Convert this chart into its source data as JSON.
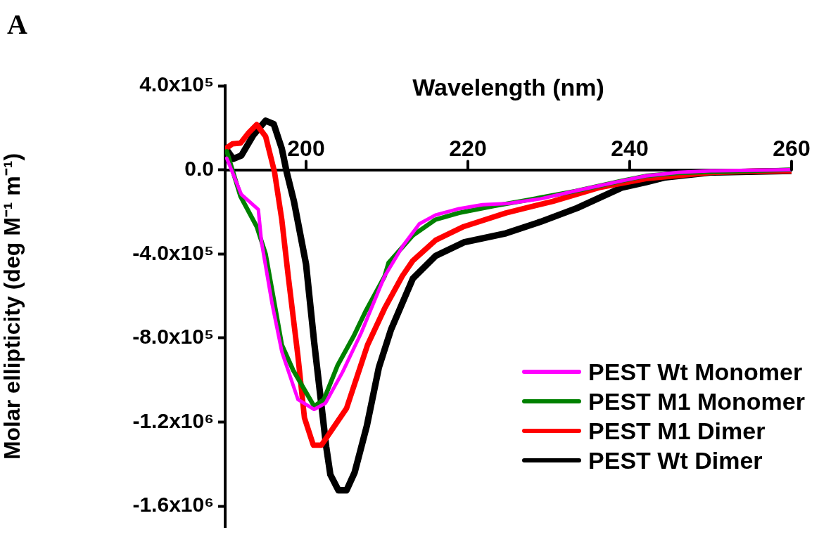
{
  "chart_data": {
    "type": "line",
    "xlabel": "Wavelength (nm)",
    "ylabel": "Molar ellipticity (deg M⁻¹ m⁻¹)",
    "annotations": [
      "A"
    ],
    "xlim": [
      190,
      260
    ],
    "xticks": [
      200,
      220,
      240,
      260
    ],
    "ylim": [
      -1700000,
      400000
    ],
    "yticks": [
      {
        "value": 400000,
        "label": "4.0x10⁵"
      },
      {
        "value": 0,
        "label": "0.0"
      },
      {
        "value": -400000,
        "label": "-4.0x10⁵"
      },
      {
        "value": -800000,
        "label": "-8.0x10⁵"
      },
      {
        "value": -1200000,
        "label": "-1.2x10⁶"
      },
      {
        "value": -1600000,
        "label": "-1.6x10⁶"
      }
    ],
    "legend": "bottom right",
    "marker": "none",
    "line_style": "solid",
    "series": [
      {
        "name": "PEST Wt Monomer",
        "color": "#ff00ff",
        "x": [
          190.2,
          192,
          194.1,
          194.5,
          195.8,
          197,
          199,
          201,
          202.4,
          204.5,
          206.8,
          209.7,
          212,
          214,
          216,
          218.9,
          221.8,
          225,
          229,
          233.3,
          239.1,
          242,
          246,
          250,
          255,
          260
        ],
        "values": [
          55000,
          -117000,
          -189000,
          -345000,
          -637000,
          -865000,
          -1093000,
          -1140000,
          -1110000,
          -963000,
          -777000,
          -507000,
          -360000,
          -257000,
          -215000,
          -185000,
          -166000,
          -160000,
          -138000,
          -100000,
          -52000,
          -29000,
          -12000,
          -5000,
          -2000,
          0
        ]
      },
      {
        "name": "PEST M1 Monomer",
        "color": "#008000",
        "x": [
          190.2,
          191.9,
          193.9,
          195,
          196.1,
          197,
          198.4,
          201,
          202.2,
          203.9,
          205.9,
          207.4,
          209.7,
          210.2,
          213.2,
          216,
          218.9,
          223.2,
          227.5,
          233.3,
          239.1,
          242,
          246,
          250,
          255,
          260
        ],
        "values": [
          88000,
          -127000,
          -270000,
          -400000,
          -637000,
          -832000,
          -953000,
          -1125000,
          -1093000,
          -930000,
          -790000,
          -670000,
          -507000,
          -442000,
          -312000,
          -237000,
          -205000,
          -172000,
          -143000,
          -101000,
          -52000,
          -29000,
          -15000,
          -10000,
          -5000,
          0
        ]
      },
      {
        "name": "PEST M1 Dimer",
        "color": "#ff0000",
        "x": [
          190.2,
          190.9,
          191.9,
          192.9,
          193.9,
          195,
          196.1,
          197,
          197.8,
          199,
          199.8,
          200.9,
          201.9,
          205,
          207.6,
          209.7,
          211.9,
          213.2,
          216,
          219.5,
          224.7,
          230.5,
          236.2,
          242,
          249.8,
          255,
          260
        ],
        "values": [
          104000,
          124000,
          127000,
          176000,
          215000,
          159000,
          -10000,
          -237000,
          -507000,
          -888000,
          -1180000,
          -1310000,
          -1310000,
          -1135000,
          -833000,
          -660000,
          -505000,
          -432000,
          -335000,
          -270000,
          -205000,
          -150000,
          -85000,
          -42000,
          -13000,
          -7000,
          -5000
        ]
      },
      {
        "name": "PEST Wt Dimer",
        "color": "#000000",
        "x": [
          190.2,
          191,
          192,
          193.5,
          195,
          196,
          197,
          197.6,
          198.5,
          200,
          201,
          202.5,
          203,
          204,
          205,
          206,
          207.5,
          209,
          210.5,
          212.5,
          213.2,
          216,
          219.5,
          224.7,
          229,
          233.5,
          239,
          242,
          244.4,
          250,
          260
        ],
        "values": [
          95000,
          52000,
          68000,
          166000,
          234000,
          218000,
          101000,
          -10000,
          -150000,
          -450000,
          -820000,
          -1320000,
          -1450000,
          -1525000,
          -1525000,
          -1440000,
          -1220000,
          -940000,
          -760000,
          -580000,
          -517000,
          -410000,
          -345000,
          -302000,
          -247000,
          -182000,
          -85000,
          -59000,
          -36000,
          -13000,
          -5000
        ]
      }
    ]
  }
}
